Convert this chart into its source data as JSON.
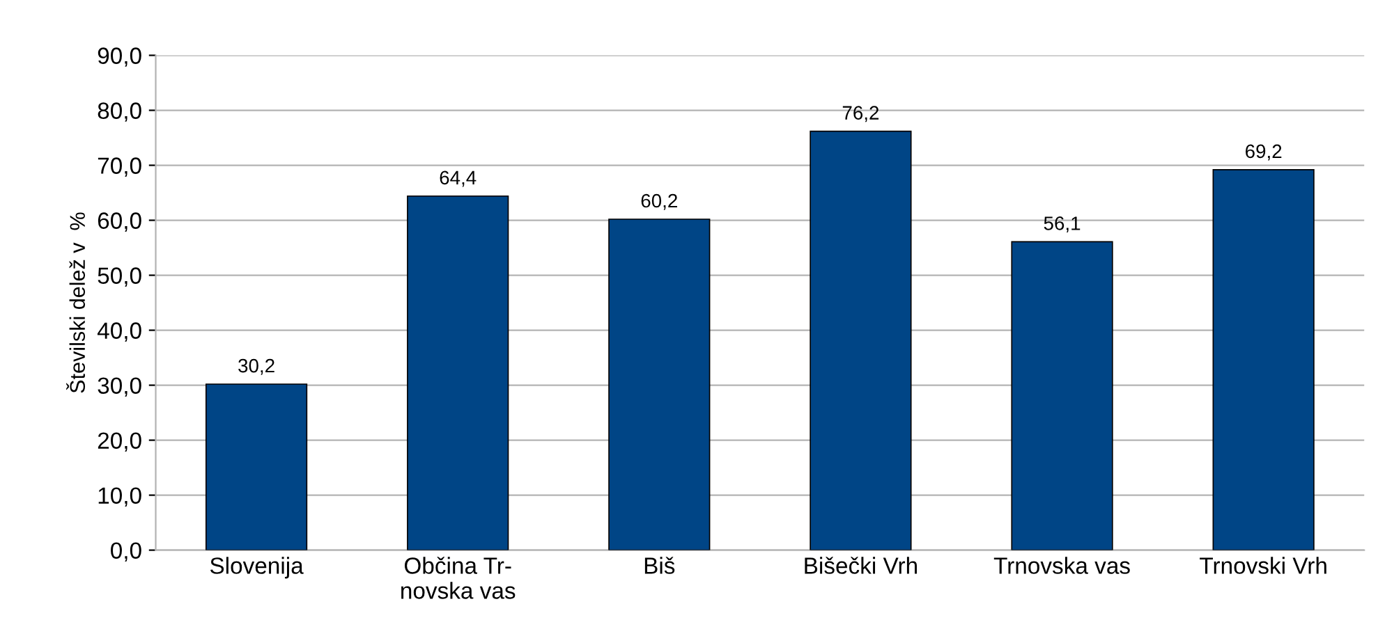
{
  "chart_data": {
    "type": "bar",
    "ylabel": "Številski delež v  %",
    "categories": [
      "Slovenija",
      "Občina Tr-\nnovska vas",
      "Biš",
      "Bišečki Vrh",
      "Trnovska vas",
      "Trnovski Vrh"
    ],
    "values": [
      30.2,
      64.4,
      60.2,
      76.2,
      56.1,
      69.2
    ],
    "value_labels": [
      "30,2",
      "64,4",
      "60,2",
      "76,2",
      "56,1",
      "69,2"
    ],
    "color": "#004586",
    "ylim": [
      0,
      90
    ],
    "yticks": [
      {
        "value": 0,
        "label": "0,0"
      },
      {
        "value": 10,
        "label": "10,0"
      },
      {
        "value": 20,
        "label": "20,0"
      },
      {
        "value": 30,
        "label": "30,0"
      },
      {
        "value": 40,
        "label": "40,0"
      },
      {
        "value": 50,
        "label": "50,0"
      },
      {
        "value": 60,
        "label": "60,0"
      },
      {
        "value": 70,
        "label": "70,0"
      },
      {
        "value": 80,
        "label": "80,0"
      },
      {
        "value": 90,
        "label": "90,0"
      }
    ],
    "grid": "y",
    "legend": false
  }
}
